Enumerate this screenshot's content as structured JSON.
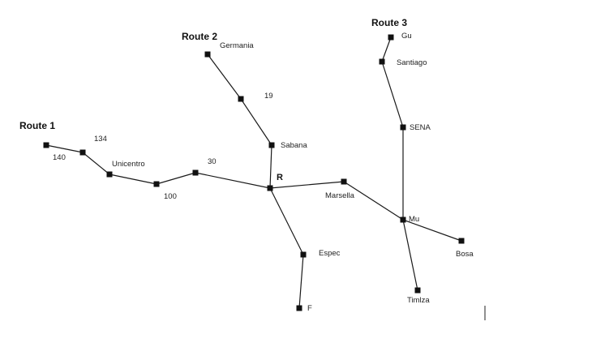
{
  "routes": [
    {
      "id": "r1",
      "title": "Route 1"
    },
    {
      "id": "r2",
      "title": "Route 2"
    },
    {
      "id": "r3",
      "title": "Route 3"
    }
  ],
  "nodes": [
    {
      "id": "n140",
      "label": "140"
    },
    {
      "id": "n134",
      "label": "134"
    },
    {
      "id": "unicentro",
      "label": "Unicentro"
    },
    {
      "id": "n100",
      "label": "100"
    },
    {
      "id": "n30",
      "label": "30"
    },
    {
      "id": "R",
      "label": "R"
    },
    {
      "id": "germania",
      "label": "Germania"
    },
    {
      "id": "n19",
      "label": "19"
    },
    {
      "id": "sabana",
      "label": "Sabana"
    },
    {
      "id": "espec",
      "label": "Espec"
    },
    {
      "id": "F",
      "label": "F"
    },
    {
      "id": "marsella",
      "label": "Marsella"
    },
    {
      "id": "gu",
      "label": "Gu"
    },
    {
      "id": "santiago",
      "label": "Santiago"
    },
    {
      "id": "sena",
      "label": "SENA"
    },
    {
      "id": "mu",
      "label": "Mu"
    },
    {
      "id": "bosa",
      "label": "Bosa"
    },
    {
      "id": "timiza",
      "label": "Timlza"
    }
  ],
  "edges": [
    [
      "n140",
      "n134"
    ],
    [
      "n134",
      "unicentro"
    ],
    [
      "unicentro",
      "n100"
    ],
    [
      "n100",
      "n30"
    ],
    [
      "n30",
      "R"
    ],
    [
      "germania",
      "n19"
    ],
    [
      "n19",
      "sabana"
    ],
    [
      "sabana",
      "R"
    ],
    [
      "R",
      "espec"
    ],
    [
      "espec",
      "F"
    ],
    [
      "R",
      "marsella"
    ],
    [
      "marsella",
      "mu"
    ],
    [
      "gu",
      "santiago"
    ],
    [
      "santiago",
      "sena"
    ],
    [
      "sena",
      "mu"
    ],
    [
      "mu",
      "bosa"
    ],
    [
      "mu",
      "timiza"
    ]
  ]
}
